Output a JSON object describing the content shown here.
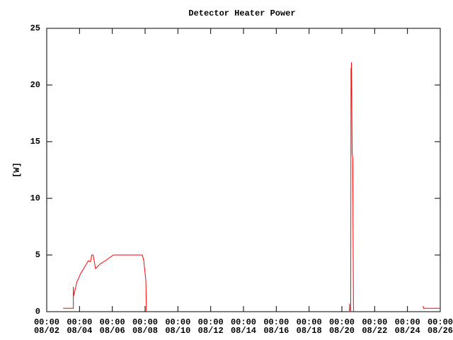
{
  "chart_data": {
    "type": "line",
    "title": "Detector Heater Power",
    "ylabel": "[W]",
    "x": [
      "08/03 00:00",
      "08/03 15:00",
      "08/03 15:00",
      "08/03 15:30",
      "08/03 20:00",
      "08/04 02:00",
      "08/04 08:00",
      "08/04 13:00",
      "08/04 16:00",
      "08/04 18:00",
      "08/04 20:00",
      "08/04 23:30",
      "08/05 06:00",
      "08/05 14:00",
      "08/06 01:30",
      "08/07 20:00",
      "08/07 22:00",
      "08/08 01:00",
      "08/08 02:00",
      null,
      "08/20 11:00",
      "08/20 11:20",
      "08/20 11:30",
      "08/20 13:00",
      "08/20 13:20",
      "08/20 13:40",
      "08/20 14:00",
      "08/20 14:20",
      "08/20 15:00",
      "08/20 16:00",
      "08/20 16:30",
      "08/20 17:00",
      null,
      "08/24 23:00",
      "08/24 23:30",
      "08/26 00:00"
    ],
    "series": [
      {
        "name": "Detector Heater Power",
        "color": "#ff0000",
        "values": [
          0.3,
          0.3,
          2.2,
          1.4,
          2.6,
          3.4,
          4.0,
          4.5,
          4.4,
          5.0,
          5.0,
          3.8,
          4.2,
          4.5,
          5.0,
          5.0,
          4.5,
          2.8,
          0,
          null,
          0,
          0.7,
          0,
          0,
          21.5,
          19,
          22,
          20,
          14,
          13.5,
          6.5,
          0,
          null,
          0.5,
          0.3,
          0.3
        ]
      }
    ],
    "xlim": [
      "08/02 00:00",
      "08/26 00:00"
    ],
    "xticks": [
      {
        "value": "08/02 00:00",
        "label": "00:00\n08/02"
      },
      {
        "value": "08/04 00:00",
        "label": "00:00\n08/04"
      },
      {
        "value": "08/06 00:00",
        "label": "00:00\n08/06"
      },
      {
        "value": "08/08 00:00",
        "label": "00:00\n08/08"
      },
      {
        "value": "08/10 00:00",
        "label": "00:00\n08/10"
      },
      {
        "value": "08/12 00:00",
        "label": "00:00\n08/12"
      },
      {
        "value": "08/14 00:00",
        "label": "00:00\n08/14"
      },
      {
        "value": "08/16 00:00",
        "label": "00:00\n08/16"
      },
      {
        "value": "08/18 00:00",
        "label": "00:00\n08/18"
      },
      {
        "value": "08/20 00:00",
        "label": "00:00\n08/20"
      },
      {
        "value": "08/22 00:00",
        "label": "00:00\n08/22"
      },
      {
        "value": "08/24 00:00",
        "label": "00:00\n08/24"
      },
      {
        "value": "08/26 00:00",
        "label": "00:00\n08/26"
      }
    ],
    "ylim": [
      0,
      25
    ],
    "yticks": [
      0,
      5,
      10,
      15,
      20,
      25
    ],
    "grid": false
  }
}
